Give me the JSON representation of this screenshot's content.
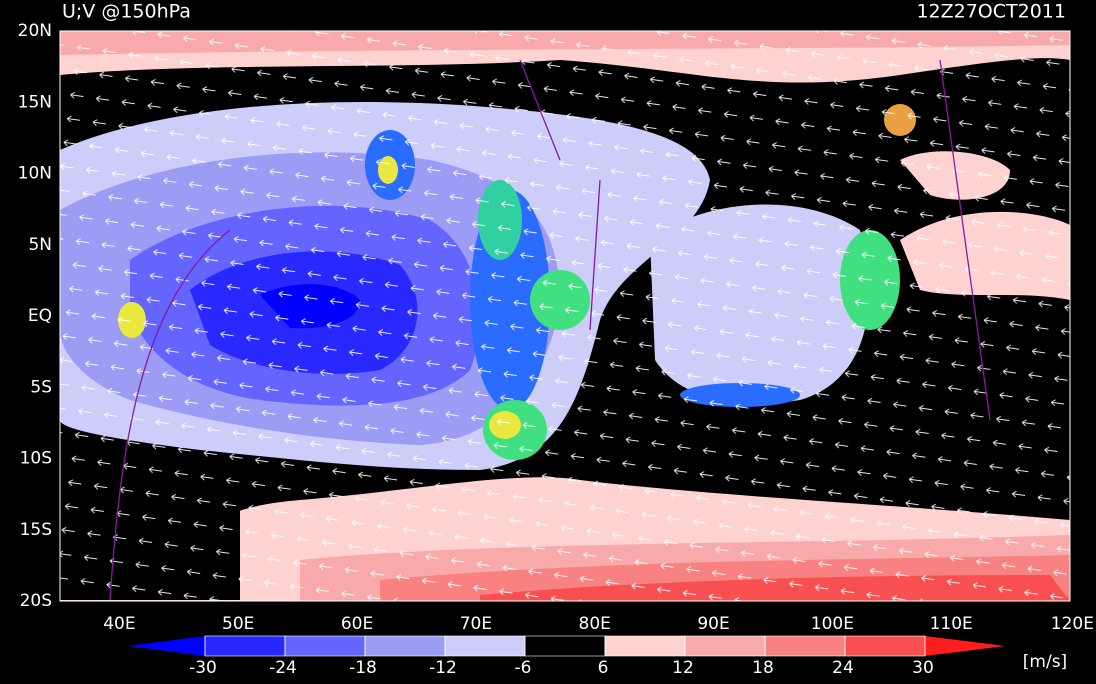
{
  "map": {
    "title": "U;V @150hPa",
    "time": "12Z27OCT2011",
    "lat_labels": [
      "20N",
      "15N",
      "10N",
      "5N",
      "EQ",
      "5S",
      "10S",
      "15S",
      "20S"
    ],
    "lon_labels": [
      "40E",
      "50E",
      "60E",
      "70E",
      "80E",
      "90E",
      "100E",
      "110E",
      "120E"
    ],
    "colorbar": {
      "ticks": [
        -30,
        -24,
        -18,
        -12,
        -6,
        6,
        12,
        18,
        24,
        30
      ],
      "colors": [
        "#0000ff",
        "#2828ff",
        "#6464ff",
        "#9c9cf4",
        "#cccdf8",
        "#000000",
        "#ffd2d2",
        "#f8aaaa",
        "#f88282",
        "#f85050",
        "#ff1e1e"
      ],
      "unit": "[m/s]"
    }
  }
}
